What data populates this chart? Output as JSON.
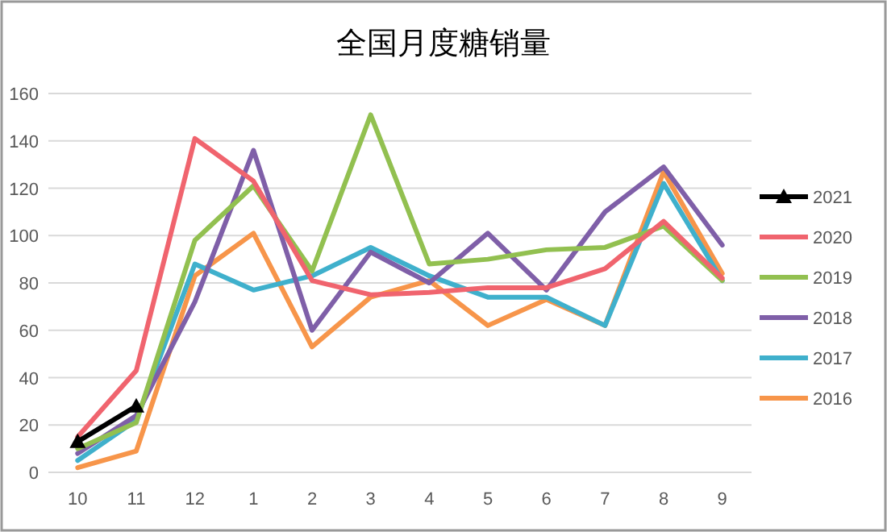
{
  "chart_data": {
    "type": "line",
    "title": "全国月度糖销量",
    "categories": [
      "10",
      "11",
      "12",
      "1",
      "2",
      "3",
      "4",
      "5",
      "6",
      "7",
      "8",
      "9"
    ],
    "ylim": [
      0,
      160
    ],
    "yticks": [
      0,
      20,
      40,
      60,
      80,
      100,
      120,
      140,
      160
    ],
    "grid": "y",
    "legend": "right",
    "series": [
      {
        "name": "2021",
        "color": "#000000",
        "marker": "triangle",
        "values": [
          13,
          28,
          null,
          null,
          null,
          null,
          null,
          null,
          null,
          null,
          null,
          null
        ]
      },
      {
        "name": "2020",
        "color": "#f0646e",
        "values": [
          15,
          43,
          141,
          123,
          81,
          75,
          76,
          78,
          78,
          86,
          106,
          82
        ]
      },
      {
        "name": "2019",
        "color": "#92c050",
        "values": [
          10,
          21,
          98,
          121,
          85,
          151,
          88,
          90,
          94,
          95,
          104,
          81
        ]
      },
      {
        "name": "2018",
        "color": "#7f5fa8",
        "values": [
          8,
          24,
          72,
          136,
          60,
          93,
          80,
          101,
          77,
          110,
          129,
          96
        ]
      },
      {
        "name": "2017",
        "color": "#3fb0cc",
        "values": [
          5,
          22,
          88,
          77,
          83,
          95,
          83,
          74,
          74,
          62,
          122,
          81
        ]
      },
      {
        "name": "2016",
        "color": "#f7954a",
        "values": [
          2,
          9,
          83,
          101,
          53,
          74,
          81,
          62,
          73,
          62,
          127,
          84
        ]
      }
    ]
  }
}
